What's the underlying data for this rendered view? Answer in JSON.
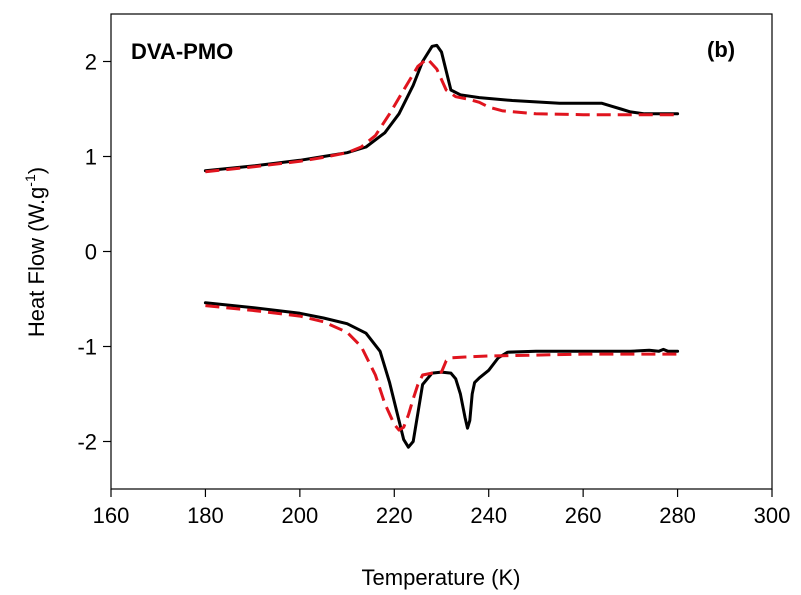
{
  "chart_data": {
    "type": "line",
    "title": "",
    "annotations": {
      "sample": "DVA-PMO",
      "panel": "(b)"
    },
    "xlabel": "Temperature (K)",
    "ylabel_main": "Heat Flow (W.g",
    "ylabel_sup": "-1",
    "ylabel_tail": ")",
    "xlim": [
      160,
      300
    ],
    "ylim": [
      -2.5,
      2.5
    ],
    "xticks": [
      160,
      180,
      200,
      220,
      240,
      260,
      280,
      300
    ],
    "yticks": [
      -2,
      -1,
      0,
      1,
      2
    ],
    "grid": false,
    "legend": "none",
    "colors": {
      "solid": "#000000",
      "dashed": "#e0141e"
    },
    "series": [
      {
        "style": "solid",
        "color": "#000000",
        "x": [
          180,
          190,
          200,
          205,
          210,
          214,
          218,
          221,
          224,
          226,
          228,
          229,
          230,
          231,
          232,
          234,
          238,
          245,
          255,
          262,
          264,
          266,
          268,
          270,
          273,
          276,
          280
        ],
        "y": [
          0.85,
          0.9,
          0.96,
          1.0,
          1.04,
          1.1,
          1.25,
          1.45,
          1.75,
          2.0,
          2.16,
          2.17,
          2.1,
          1.9,
          1.7,
          1.65,
          1.62,
          1.59,
          1.56,
          1.56,
          1.56,
          1.53,
          1.5,
          1.47,
          1.45,
          1.45,
          1.45
        ]
      },
      {
        "style": "dashed",
        "color": "#e0141e",
        "x": [
          180,
          190,
          200,
          205,
          210,
          213,
          216,
          219,
          222,
          225,
          227,
          229,
          231,
          233,
          236,
          238,
          240,
          243,
          250,
          260,
          270,
          280
        ],
        "y": [
          0.84,
          0.89,
          0.95,
          0.99,
          1.04,
          1.1,
          1.22,
          1.45,
          1.7,
          1.95,
          2.03,
          1.92,
          1.7,
          1.63,
          1.6,
          1.57,
          1.52,
          1.48,
          1.45,
          1.44,
          1.44,
          1.44
        ]
      },
      {
        "style": "solid",
        "color": "#000000",
        "x": [
          180,
          190,
          200,
          205,
          210,
          214,
          217,
          219,
          221,
          222,
          223,
          224,
          225,
          226,
          228,
          230,
          232,
          233,
          234,
          235,
          235.5,
          236,
          236.5,
          237,
          238,
          240,
          242,
          244,
          250,
          260,
          270,
          274,
          276,
          277,
          278,
          280
        ],
        "y": [
          -0.54,
          -0.59,
          -0.65,
          -0.7,
          -0.76,
          -0.86,
          -1.05,
          -1.38,
          -1.78,
          -1.98,
          -2.06,
          -2.0,
          -1.7,
          -1.4,
          -1.28,
          -1.27,
          -1.28,
          -1.34,
          -1.5,
          -1.75,
          -1.86,
          -1.78,
          -1.5,
          -1.38,
          -1.33,
          -1.25,
          -1.12,
          -1.06,
          -1.05,
          -1.05,
          -1.05,
          -1.04,
          -1.05,
          -1.03,
          -1.05,
          -1.05
        ]
      },
      {
        "style": "dashed",
        "color": "#e0141e",
        "x": [
          180,
          190,
          200,
          205,
          210,
          213,
          216,
          218,
          220,
          221,
          222,
          223,
          224,
          225,
          226,
          228,
          230,
          231,
          232,
          235,
          240,
          250,
          260,
          270,
          280
        ],
        "y": [
          -0.57,
          -0.62,
          -0.68,
          -0.74,
          -0.85,
          -1.0,
          -1.3,
          -1.6,
          -1.82,
          -1.88,
          -1.85,
          -1.72,
          -1.55,
          -1.4,
          -1.3,
          -1.28,
          -1.27,
          -1.15,
          -1.12,
          -1.11,
          -1.1,
          -1.09,
          -1.08,
          -1.08,
          -1.08
        ]
      }
    ]
  }
}
